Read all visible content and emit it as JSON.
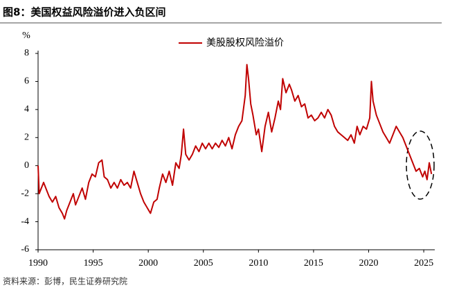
{
  "chart_data": {
    "type": "line",
    "title": "图8：美国权益风险溢价进入负区间",
    "y_label": "%",
    "source": "资料来源：彭博，民生证券研究院",
    "xlim": [
      1990,
      2026
    ],
    "xticks": [
      1990,
      1995,
      2000,
      2005,
      2010,
      2015,
      2020,
      2025
    ],
    "ylim": [
      -6,
      8
    ],
    "yticks": [
      -6,
      -4,
      -2,
      0,
      2,
      4,
      6,
      8
    ],
    "legend": "top",
    "series": [
      {
        "name": "美股股权风险溢价",
        "color": "#c00000",
        "x": [
          1990.0,
          1990.1,
          1990.5,
          1990.8,
          1991.0,
          1991.3,
          1991.6,
          1991.9,
          1992.2,
          1992.4,
          1992.6,
          1992.9,
          1993.2,
          1993.4,
          1993.7,
          1994.0,
          1994.3,
          1994.6,
          1994.9,
          1995.2,
          1995.5,
          1995.8,
          1996.0,
          1996.3,
          1996.6,
          1996.9,
          1997.2,
          1997.5,
          1997.8,
          1998.1,
          1998.4,
          1998.7,
          1999.0,
          1999.3,
          1999.6,
          1999.9,
          2000.2,
          2000.5,
          2000.8,
          2001.0,
          2001.3,
          2001.6,
          2001.9,
          2002.2,
          2002.5,
          2002.8,
          2003.0,
          2003.2,
          2003.4,
          2003.7,
          2004.0,
          2004.3,
          2004.6,
          2004.9,
          2005.2,
          2005.5,
          2005.8,
          2006.1,
          2006.4,
          2006.7,
          2007.0,
          2007.3,
          2007.6,
          2007.9,
          2008.2,
          2008.5,
          2008.8,
          2008.95,
          2009.1,
          2009.3,
          2009.5,
          2009.8,
          2010.0,
          2010.3,
          2010.6,
          2010.9,
          2011.2,
          2011.5,
          2011.8,
          2012.0,
          2012.2,
          2012.5,
          2012.8,
          2013.0,
          2013.3,
          2013.6,
          2013.9,
          2014.2,
          2014.5,
          2014.8,
          2015.1,
          2015.4,
          2015.7,
          2016.0,
          2016.3,
          2016.6,
          2016.9,
          2017.2,
          2017.5,
          2017.8,
          2018.1,
          2018.4,
          2018.7,
          2018.95,
          2019.2,
          2019.5,
          2019.8,
          2020.1,
          2020.25,
          2020.4,
          2020.7,
          2021.0,
          2021.3,
          2021.6,
          2021.9,
          2022.2,
          2022.5,
          2022.8,
          2023.1,
          2023.4,
          2023.7,
          2024.0,
          2024.3,
          2024.6,
          2024.9,
          2025.1,
          2025.3,
          2025.5,
          2025.7
        ],
        "values": [
          0,
          -2.0,
          -1.2,
          -1.8,
          -2.2,
          -2.6,
          -2.2,
          -3.0,
          -3.4,
          -3.8,
          -3.2,
          -2.6,
          -2.0,
          -2.8,
          -2.2,
          -1.6,
          -2.4,
          -1.2,
          -0.6,
          -0.8,
          0.2,
          0.4,
          -0.8,
          -1.0,
          -1.6,
          -1.2,
          -1.6,
          -1.0,
          -1.4,
          -1.2,
          -1.6,
          -0.4,
          -1.2,
          -2.0,
          -2.6,
          -3.0,
          -3.4,
          -2.6,
          -2.4,
          -1.6,
          -0.6,
          -1.2,
          -0.4,
          -1.4,
          0.2,
          -0.2,
          0.8,
          2.6,
          0.8,
          0.4,
          0.8,
          1.4,
          1.0,
          1.6,
          1.2,
          1.6,
          1.2,
          1.6,
          1.3,
          1.8,
          1.4,
          2.0,
          1.2,
          2.2,
          2.8,
          3.2,
          5.0,
          7.2,
          6.2,
          4.4,
          3.6,
          2.2,
          2.6,
          1.0,
          2.8,
          3.8,
          2.4,
          3.4,
          4.6,
          4.0,
          6.2,
          5.2,
          5.8,
          5.4,
          4.6,
          5.0,
          4.2,
          4.4,
          3.4,
          3.6,
          3.2,
          3.4,
          3.8,
          3.4,
          4.0,
          3.6,
          2.8,
          2.4,
          2.2,
          2.0,
          1.8,
          2.2,
          1.6,
          2.8,
          2.2,
          2.8,
          2.6,
          3.4,
          6.0,
          4.6,
          3.6,
          3.0,
          2.4,
          2.0,
          1.6,
          2.2,
          2.8,
          2.4,
          2.0,
          1.4,
          0.8,
          0.2,
          -0.4,
          -0.2,
          -0.8,
          -0.4,
          -1.0,
          0.2,
          -0.6
        ]
      }
    ]
  }
}
